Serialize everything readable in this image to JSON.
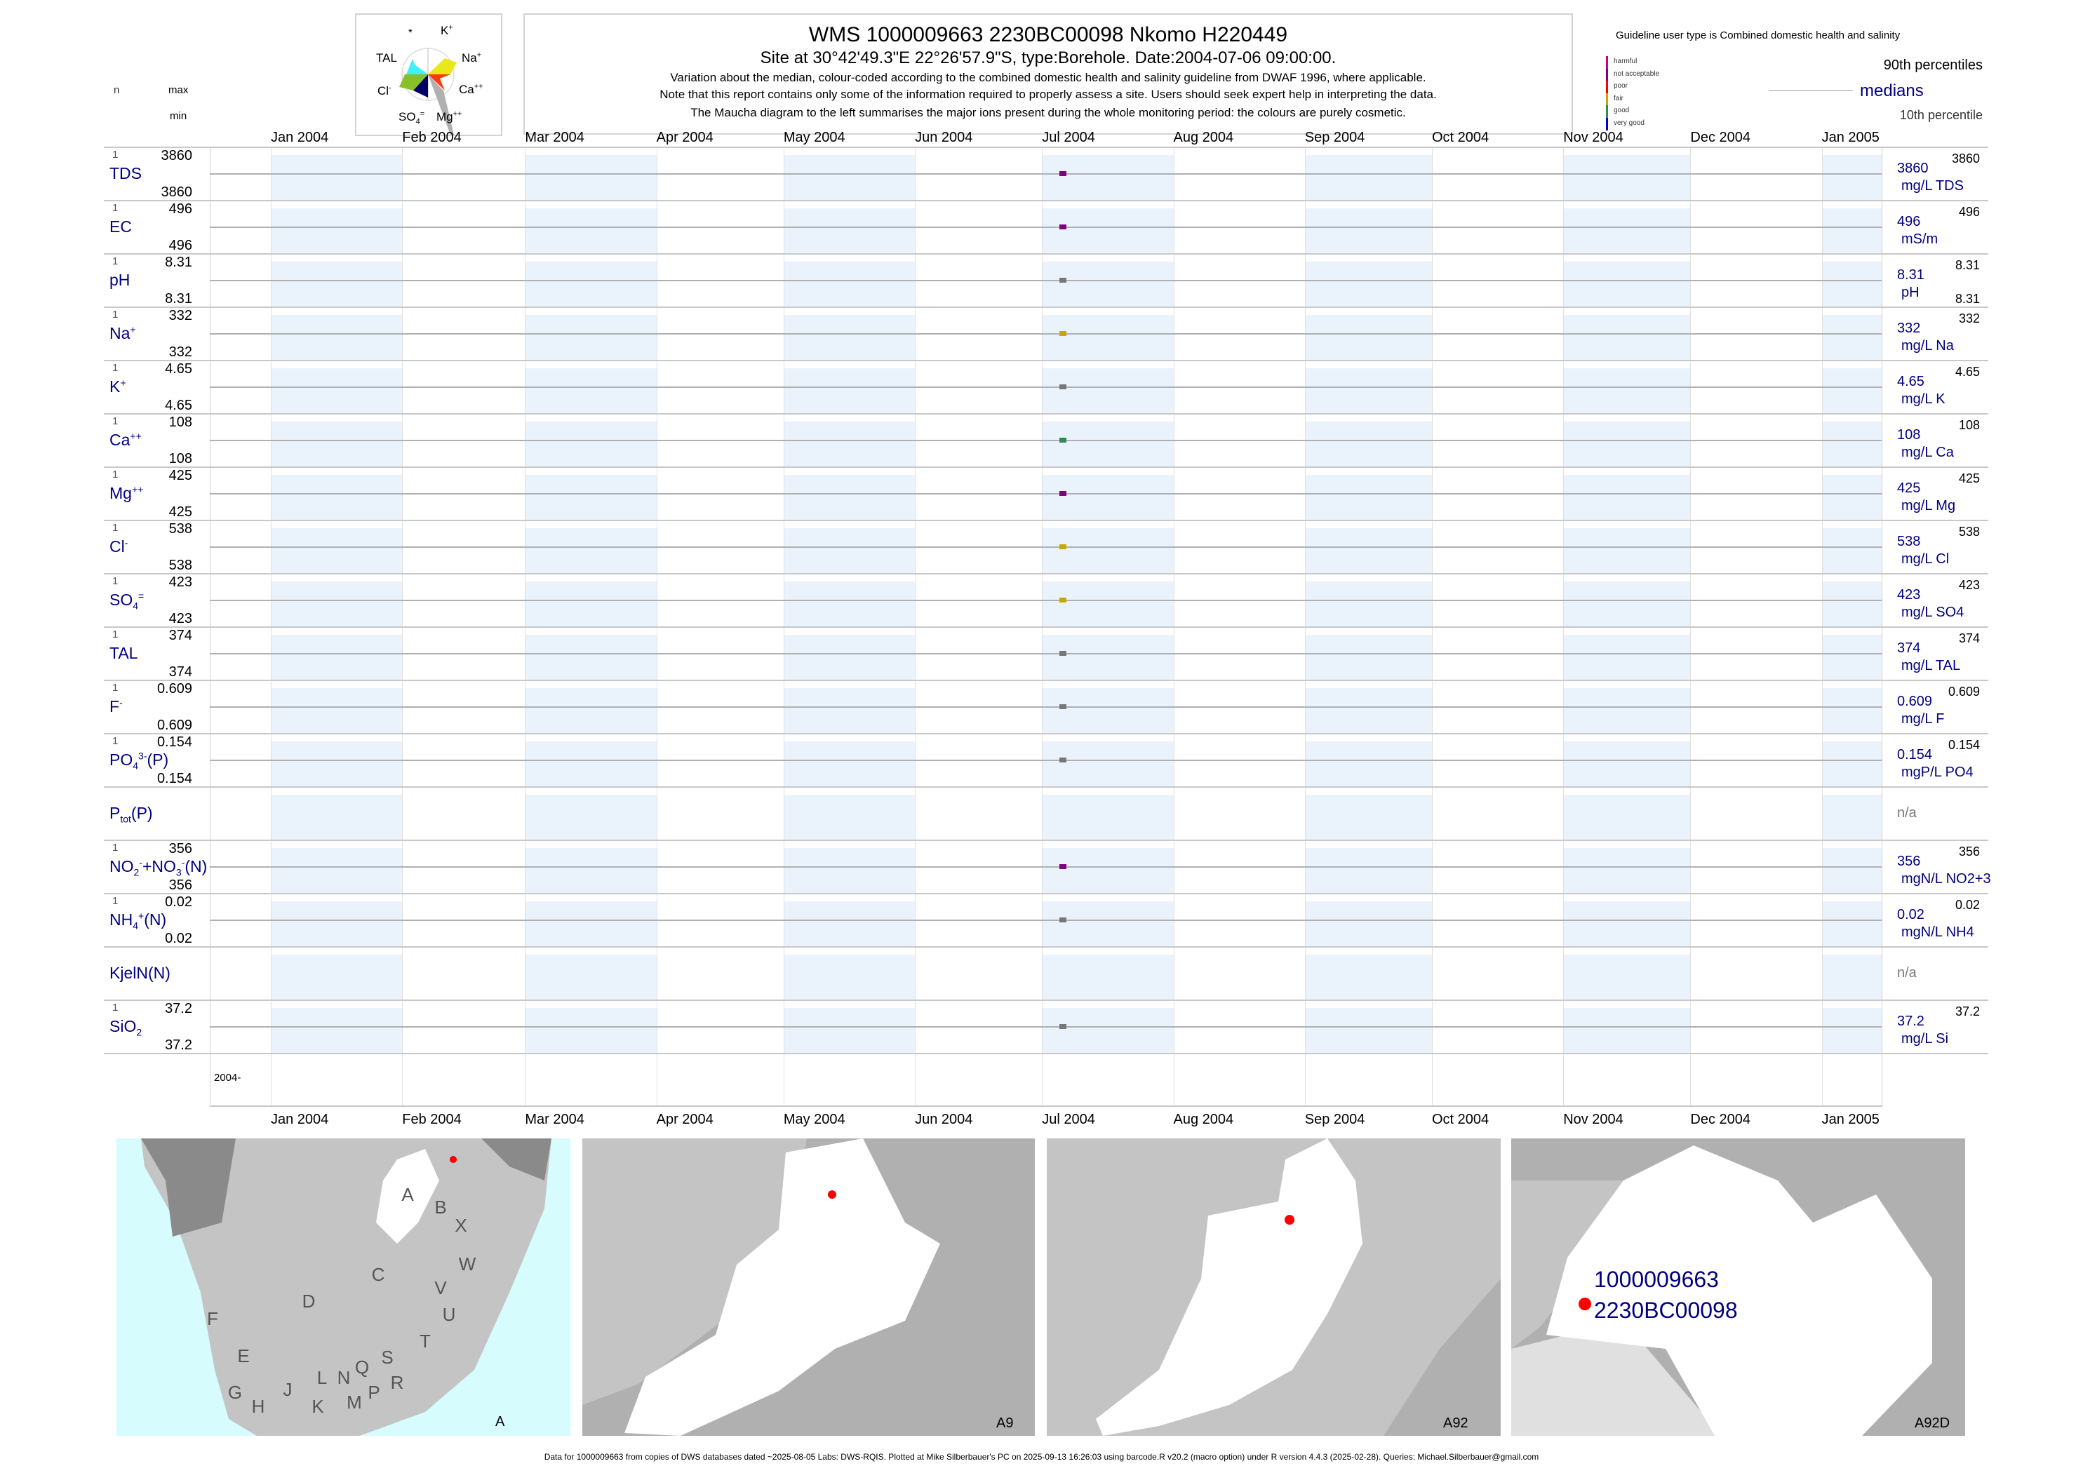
{
  "header": {
    "title": "WMS 1000009663 2230BC00098 Nkomo H220449",
    "subtitle": "Site at 30°42'49.3\"E 22°26'57.9\"S, type:Borehole. Date:2004-07-06 09:00:00.",
    "note1": "Variation about the median,  colour-coded according to the combined domestic health and salinity guideline from DWAF 1996, where applicable.",
    "note2": "Note that this report contains only some of the information required to properly assess a site. Users should seek expert help in interpreting the data.",
    "note3": "The Maucha diagram to the left summarises the major ions present during the whole monitoring period: the colours are purely cosmetic."
  },
  "maucha": {
    "labels": {
      "star": "*",
      "k": "K",
      "k_sup": "+",
      "na": "Na",
      "na_sup": "+",
      "ca": "Ca",
      "ca_sup": "++",
      "mg": "Mg",
      "mg_sup": "++",
      "so4": "SO",
      "so4_sub": "4",
      "so4_sup": "=",
      "cl": "Cl",
      "cl_sup": "-",
      "tal": "TAL"
    },
    "colors": {
      "na": "#e8e81a",
      "ca": "#ff3a10",
      "mg": "#b0b0b0",
      "so4": "#000066",
      "cl": "#88c02a",
      "tal": "#40f0f8"
    }
  },
  "column_headers": {
    "n": "n",
    "max": "max",
    "min": "min"
  },
  "legend": {
    "guideline": "Guideline user type is Combined domestic health and salinity",
    "classes": [
      {
        "label": "harmful",
        "color": "#cc0077"
      },
      {
        "label": "not acceptable",
        "color": "#800080"
      },
      {
        "label": "poor",
        "color": "#ff0000"
      },
      {
        "label": "fair",
        "color": "#d4a000"
      },
      {
        "label": "good",
        "color": "#2e8b57"
      },
      {
        "label": "very good",
        "color": "#0000dd"
      }
    ],
    "p90": "90th percentiles",
    "medians": "medians",
    "p10": "10th percentile"
  },
  "chart_data": {
    "type": "scatter",
    "x_range": [
      "2004-01-01",
      "2005-01-01"
    ],
    "months": [
      {
        "label": "Jan 2004",
        "date": "2004-01-01"
      },
      {
        "label": "Feb 2004",
        "date": "2004-02-01"
      },
      {
        "label": "Mar 2004",
        "date": "2004-03-01"
      },
      {
        "label": "Apr 2004",
        "date": "2004-04-01"
      },
      {
        "label": "May 2004",
        "date": "2004-05-01"
      },
      {
        "label": "Jun 2004",
        "date": "2004-06-01"
      },
      {
        "label": "Jul 2004",
        "date": "2004-07-01"
      },
      {
        "label": "Aug 2004",
        "date": "2004-08-01"
      },
      {
        "label": "Sep 2004",
        "date": "2004-09-01"
      },
      {
        "label": "Oct 2004",
        "date": "2004-10-01"
      },
      {
        "label": "Nov 2004",
        "date": "2004-11-01"
      },
      {
        "label": "Dec 2004",
        "date": "2004-12-01"
      },
      {
        "label": "Jan 2005",
        "date": "2005-01-01"
      }
    ],
    "year_label": "2004-",
    "sample_date": "2004-07-06",
    "rows": [
      {
        "label": [
          {
            "t": "TDS"
          }
        ],
        "n": "1",
        "max": "3860",
        "min": "3860",
        "median": "3860",
        "unit": "mg/L TDS",
        "p90": "3860",
        "color": "#800080"
      },
      {
        "label": [
          {
            "t": "EC"
          }
        ],
        "n": "1",
        "max": "496",
        "min": "496",
        "median": "496",
        "unit": "mS/m",
        "p90": "496",
        "color": "#800080"
      },
      {
        "label": [
          {
            "t": "pH"
          }
        ],
        "n": "1",
        "max": "8.31",
        "min": "8.31",
        "median": "8.31",
        "unit": "pH",
        "p90": "8.31",
        "p10": "8.31",
        "color": "#777777"
      },
      {
        "label": [
          {
            "t": "Na"
          },
          {
            "t": "+",
            "k": "sup"
          }
        ],
        "n": "1",
        "max": "332",
        "min": "332",
        "median": "332",
        "unit": "mg/L Na",
        "p90": "332",
        "color": "#c8a800"
      },
      {
        "label": [
          {
            "t": "K"
          },
          {
            "t": "+",
            "k": "sup"
          }
        ],
        "n": "1",
        "max": "4.65",
        "min": "4.65",
        "median": "4.65",
        "unit": "mg/L K",
        "p90": "4.65",
        "color": "#777777"
      },
      {
        "label": [
          {
            "t": "Ca"
          },
          {
            "t": "++",
            "k": "sup"
          }
        ],
        "n": "1",
        "max": "108",
        "min": "108",
        "median": "108",
        "unit": "mg/L Ca",
        "p90": "108",
        "color": "#2e8b57"
      },
      {
        "label": [
          {
            "t": "Mg"
          },
          {
            "t": "++",
            "k": "sup"
          }
        ],
        "n": "1",
        "max": "425",
        "min": "425",
        "median": "425",
        "unit": "mg/L Mg",
        "p90": "425",
        "color": "#800080"
      },
      {
        "label": [
          {
            "t": "Cl"
          },
          {
            "t": "-",
            "k": "sup"
          }
        ],
        "n": "1",
        "max": "538",
        "min": "538",
        "median": "538",
        "unit": "mg/L Cl",
        "p90": "538",
        "color": "#c8a800"
      },
      {
        "label": [
          {
            "t": "SO"
          },
          {
            "t": "4",
            "k": "sub"
          },
          {
            "t": "=",
            "k": "sup"
          }
        ],
        "n": "1",
        "max": "423",
        "min": "423",
        "median": "423",
        "unit": "mg/L SO4",
        "p90": "423",
        "color": "#c8a800"
      },
      {
        "label": [
          {
            "t": "TAL"
          }
        ],
        "n": "1",
        "max": "374",
        "min": "374",
        "median": "374",
        "unit": "mg/L TAL",
        "p90": "374",
        "color": "#777777"
      },
      {
        "label": [
          {
            "t": "F"
          },
          {
            "t": "-",
            "k": "sup"
          }
        ],
        "n": "1",
        "max": "0.609",
        "min": "0.609",
        "median": "0.609",
        "unit": "mg/L F",
        "p90": "0.609",
        "color": "#777777"
      },
      {
        "label": [
          {
            "t": "PO"
          },
          {
            "t": "4",
            "k": "sub"
          },
          {
            "t": "3-",
            "k": "sup"
          },
          {
            "t": "(P)"
          }
        ],
        "n": "1",
        "max": "0.154",
        "min": "0.154",
        "median": "0.154",
        "unit": "mgP/L PO4",
        "p90": "0.154",
        "color": "#777777"
      },
      {
        "label": [
          {
            "t": "P"
          },
          {
            "t": "tot",
            "k": "sub"
          },
          {
            "t": "(P)"
          }
        ],
        "na": "n/a"
      },
      {
        "label": [
          {
            "t": "NO"
          },
          {
            "t": "2",
            "k": "sub"
          },
          {
            "t": "-",
            "k": "sup"
          },
          {
            "t": "+NO"
          },
          {
            "t": "3",
            "k": "sub"
          },
          {
            "t": "-",
            "k": "sup"
          },
          {
            "t": "(N)"
          }
        ],
        "n": "1",
        "max": "356",
        "min": "356",
        "median": "356",
        "unit": "mgN/L NO2+3",
        "p90": "356",
        "color": "#800080"
      },
      {
        "label": [
          {
            "t": "NH"
          },
          {
            "t": "4",
            "k": "sub"
          },
          {
            "t": "+",
            "k": "sup"
          },
          {
            "t": "(N)"
          }
        ],
        "n": "1",
        "max": "0.02",
        "min": "0.02",
        "median": "0.02",
        "unit": "mgN/L NH4",
        "p90": "0.02",
        "color": "#777777"
      },
      {
        "label": [
          {
            "t": "KjelN(N)"
          }
        ],
        "na": "n/a"
      },
      {
        "label": [
          {
            "t": "SiO"
          },
          {
            "t": "2",
            "k": "sub"
          }
        ],
        "n": "1",
        "max": "37.2",
        "min": "37.2",
        "median": "37.2",
        "unit": "mg/L Si",
        "p90": "37.2",
        "color": "#777777"
      }
    ]
  },
  "maps": {
    "panel_labels": [
      "A",
      "A9",
      "A92",
      "A92D"
    ],
    "region_letters": [
      "A",
      "B",
      "X",
      "W",
      "C",
      "V",
      "D",
      "U",
      "F",
      "T",
      "E",
      "S",
      "Q",
      "N",
      "L",
      "R",
      "P",
      "J",
      "G",
      "H",
      "K",
      "M"
    ],
    "station_id": "1000009663",
    "station_code": "2230BC00098",
    "marker_color": "#ff0000",
    "sea_color": "#d6fcfd"
  },
  "footer": "Data for 1000009663 from copies of DWS databases dated ~2025-08-05 Labs: DWS-RQIS. Plotted at Mike Silberbauer's PC on 2025-09-13 16:26:03 using barcode.R v20.2 (macro option) under R version 4.4.3 (2025-02-28). Queries: Michael.Silberbauer@gmail.com"
}
